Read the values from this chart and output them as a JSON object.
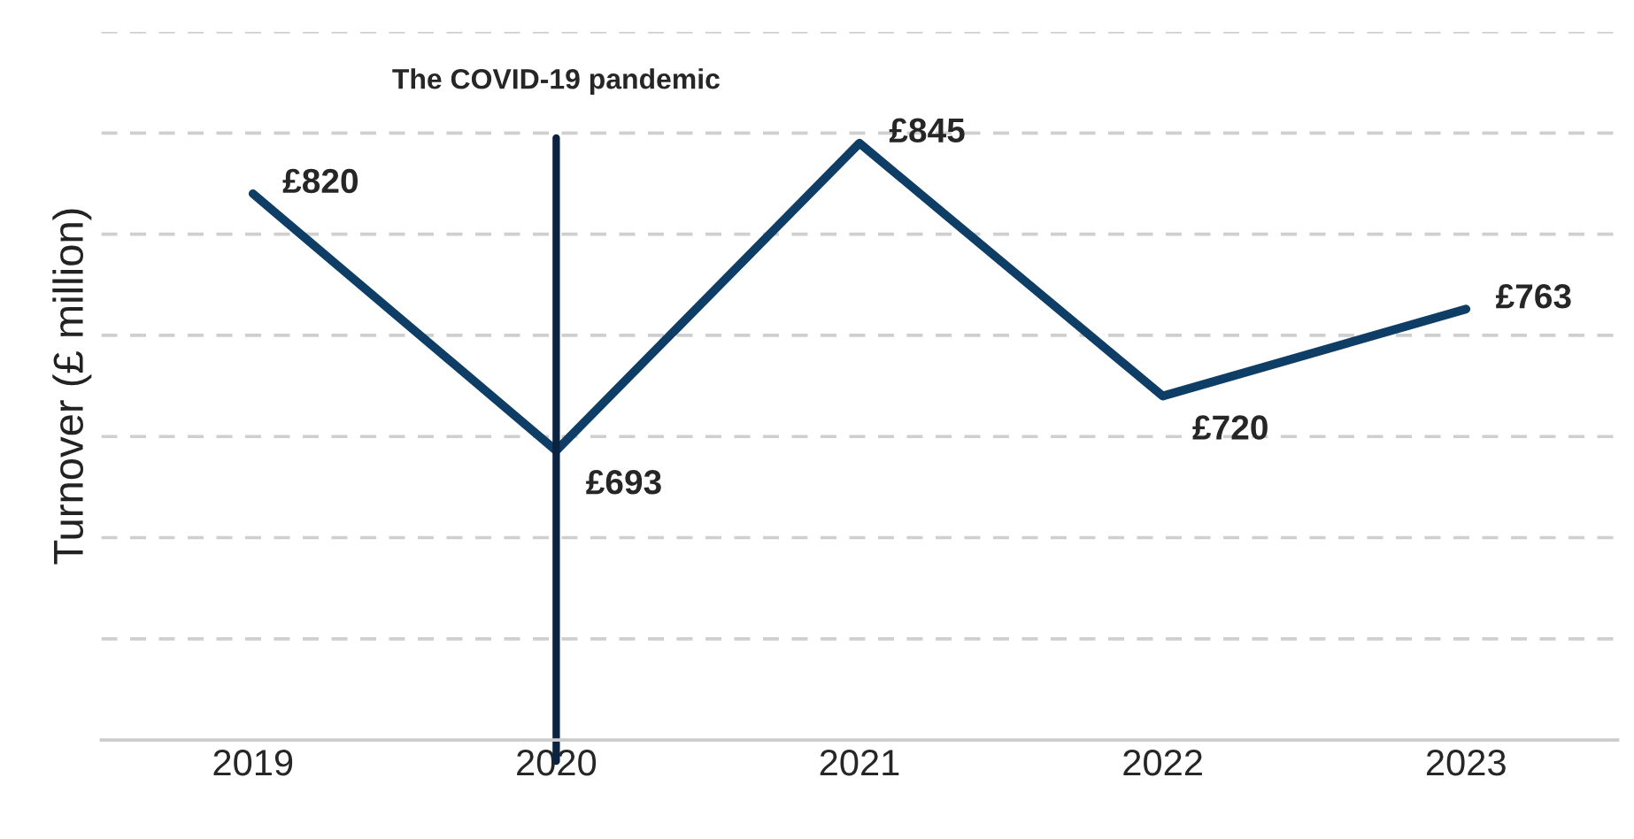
{
  "chart_data": {
    "type": "line",
    "ylabel": "Turnover (£ million)",
    "categories": [
      "2019",
      "2020",
      "2021",
      "2022",
      "2023"
    ],
    "series": [
      {
        "color": "#0e3d66",
        "values": [
          820,
          693,
          845,
          720,
          763
        ],
        "value_labels": [
          "£820",
          "£693",
          "£845",
          "£720",
          "£763"
        ]
      }
    ],
    "ylim": [
      550,
      900
    ],
    "yticks": [
      {
        "value": 600,
        "label": null
      },
      {
        "value": 650,
        "label": null
      },
      {
        "value": 700,
        "label": null
      },
      {
        "value": 750,
        "label": null
      },
      {
        "value": 800,
        "label": null
      },
      {
        "value": 850,
        "label": null
      },
      {
        "value": 900,
        "label": null
      }
    ],
    "tick_labels": "x",
    "grid": "y",
    "marker": "none",
    "line_style": "solid",
    "legend": false,
    "ref_lines": [
      {
        "axis": "x",
        "value": "2020",
        "label": "The COVID-19 pandemic",
        "color": "#0b2340"
      }
    ]
  }
}
